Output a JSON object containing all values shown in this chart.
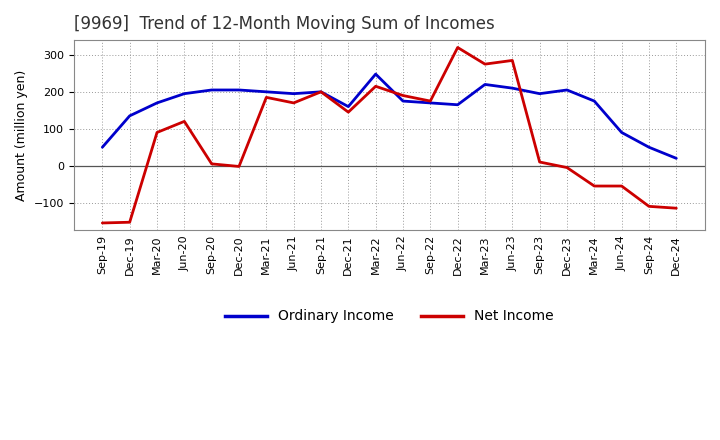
{
  "title": "[9969]  Trend of 12-Month Moving Sum of Incomes",
  "ylabel": "Amount (million yen)",
  "background_color": "#ffffff",
  "plot_bg_color": "#ffffff",
  "grid_color": "#999999",
  "x_labels": [
    "Sep-19",
    "Dec-19",
    "Mar-20",
    "Jun-20",
    "Sep-20",
    "Dec-20",
    "Mar-21",
    "Jun-21",
    "Sep-21",
    "Dec-21",
    "Mar-22",
    "Jun-22",
    "Sep-22",
    "Dec-22",
    "Mar-23",
    "Jun-23",
    "Sep-23",
    "Dec-23",
    "Mar-24",
    "Jun-24",
    "Sep-24",
    "Dec-24"
  ],
  "ordinary_income": [
    50,
    135,
    170,
    195,
    205,
    205,
    200,
    195,
    200,
    160,
    248,
    175,
    170,
    165,
    220,
    210,
    195,
    205,
    175,
    90,
    50,
    20
  ],
  "net_income": [
    -155,
    -153,
    90,
    120,
    5,
    -2,
    185,
    170,
    200,
    145,
    215,
    190,
    175,
    320,
    275,
    285,
    10,
    -5,
    -55,
    -55,
    -110,
    -115
  ],
  "ylim": [
    -175,
    340
  ],
  "yticks": [
    -100,
    0,
    100,
    200,
    300
  ],
  "ordinary_color": "#0000cc",
  "net_color": "#cc0000",
  "line_width": 2.0,
  "title_fontsize": 12,
  "tick_fontsize": 8,
  "ylabel_fontsize": 9,
  "legend_fontsize": 10
}
